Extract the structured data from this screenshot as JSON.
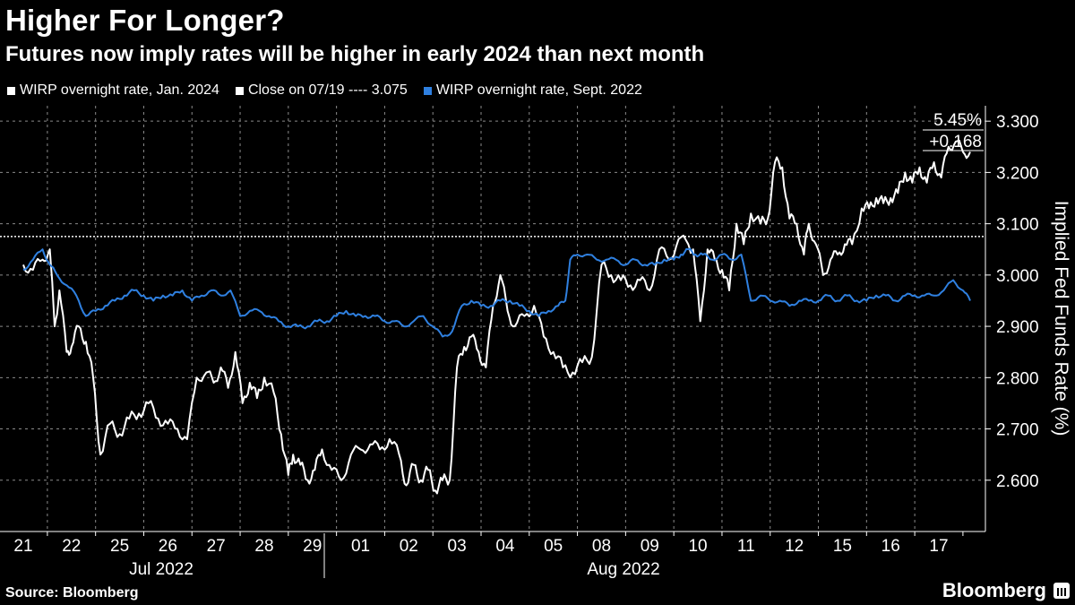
{
  "chart_data": {
    "type": "line",
    "title": "Higher For Longer?",
    "subtitle": "Futures now imply rates will be higher in early 2024 than next month",
    "ylabel": "Implied Fed Funds Rate (%)",
    "ylim": [
      2.5,
      3.33
    ],
    "yticks": [
      "3.300",
      "3.200",
      "3.100",
      "3.000",
      "2.900",
      "2.800",
      "2.700",
      "2.600"
    ],
    "ytick_values": [
      3.3,
      3.2,
      3.1,
      3.0,
      2.9,
      2.8,
      2.7,
      2.6
    ],
    "grid": true,
    "day_labels": [
      "21",
      "22",
      "25",
      "26",
      "27",
      "28",
      "29",
      "01",
      "02",
      "03",
      "04",
      "05",
      "08",
      "09",
      "10",
      "11",
      "12",
      "15",
      "16",
      "17"
    ],
    "month_labels": [
      "Jul 2022",
      "Aug 2022"
    ],
    "legend": [
      {
        "label": "WIRP overnight rate, Jan. 2024",
        "color": "#ffffff"
      },
      {
        "label": "Close on 07/19 ---- 3.075",
        "color": "#ffffff"
      },
      {
        "label": "WIRP overnight rate, Sept. 2022",
        "color": "#2f80e0"
      }
    ],
    "reference_line": {
      "value": 3.075
    },
    "annotations": {
      "top_label": "5.45%",
      "change_label": "+0.168"
    },
    "series": [
      {
        "name": "WIRP overnight rate, Jan. 2024",
        "color": "#ffffff",
        "x": [
          0,
          0.2,
          0.4,
          0.55,
          0.65,
          0.75,
          0.9,
          1.0,
          1.15,
          1.3,
          1.45,
          1.6,
          1.8,
          2.0,
          2.2,
          2.4,
          2.6,
          2.8,
          3.0,
          3.2,
          3.4,
          3.6,
          3.8,
          3.95,
          4.1,
          4.25,
          4.4,
          4.55,
          4.7,
          4.85,
          5.0,
          5.2,
          5.35,
          5.5,
          5.6,
          5.75,
          5.9,
          6.05,
          6.2,
          6.4,
          6.6,
          6.8,
          7.0,
          7.2,
          7.4,
          7.6,
          7.8,
          7.95,
          8.1,
          8.25,
          8.4,
          8.55,
          8.7,
          8.85,
          9.0,
          9.15,
          9.3,
          9.45,
          9.6,
          9.75,
          9.9,
          10.05,
          10.2,
          10.4,
          10.6,
          10.8,
          11.0,
          11.2,
          11.4,
          11.6,
          11.8,
          12.0,
          12.2,
          12.4,
          12.6,
          12.8,
          13.0,
          13.2,
          13.4,
          13.6,
          13.8,
          13.9,
          14.05,
          14.2,
          14.35,
          14.5,
          14.65,
          14.8,
          14.95,
          15.1,
          15.3,
          15.45,
          15.6,
          15.75,
          15.9,
          16.05,
          16.2,
          16.3,
          16.45,
          16.6,
          16.75,
          16.9,
          17.05,
          17.2,
          17.4,
          17.55,
          17.7,
          17.85,
          18.0,
          18.15,
          18.3,
          18.45,
          18.6,
          18.75,
          18.9,
          19.05,
          19.2,
          19.35,
          19.5,
          19.65
        ],
        "values": [
          3.02,
          3.01,
          3.03,
          3.05,
          2.9,
          2.97,
          2.85,
          2.86,
          2.9,
          2.87,
          2.8,
          2.65,
          2.71,
          2.69,
          2.72,
          2.73,
          2.75,
          2.72,
          2.71,
          2.7,
          2.68,
          2.8,
          2.81,
          2.79,
          2.82,
          2.78,
          2.85,
          2.75,
          2.79,
          2.76,
          2.8,
          2.77,
          2.69,
          2.61,
          2.65,
          2.63,
          2.6,
          2.62,
          2.66,
          2.62,
          2.6,
          2.65,
          2.66,
          2.67,
          2.66,
          2.68,
          2.65,
          2.59,
          2.63,
          2.6,
          2.62,
          2.58,
          2.6,
          2.6,
          2.82,
          2.86,
          2.88,
          2.85,
          2.82,
          2.94,
          3.0,
          2.93,
          2.9,
          2.92,
          2.94,
          2.88,
          2.85,
          2.82,
          2.81,
          2.83,
          2.84,
          3.02,
          3.0,
          2.99,
          2.98,
          2.99,
          2.97,
          3.05,
          3.03,
          3.07,
          3.06,
          3.05,
          2.91,
          3.05,
          3.03,
          3.01,
          2.97,
          3.1,
          3.06,
          3.12,
          3.1,
          3.11,
          3.22,
          3.21,
          3.11,
          3.1,
          3.04,
          3.1,
          3.06,
          3.0,
          3.03,
          3.04,
          3.06,
          3.06,
          3.13,
          3.13,
          3.15,
          3.14,
          3.15,
          3.16,
          3.2,
          3.18,
          3.21,
          3.18,
          3.22,
          3.19,
          3.25,
          3.26,
          3.24,
          3.24
        ]
      },
      {
        "name": "WIRP overnight rate, Sept. 2022",
        "color": "#2f80e0",
        "x": [
          0,
          0.2,
          0.4,
          0.55,
          0.7,
          0.9,
          1.1,
          1.3,
          1.5,
          1.7,
          1.9,
          2.1,
          2.3,
          2.5,
          2.7,
          2.9,
          3.1,
          3.3,
          3.5,
          3.7,
          3.9,
          4.1,
          4.3,
          4.5,
          4.7,
          4.9,
          5.1,
          5.3,
          5.5,
          5.7,
          5.9,
          6.1,
          6.3,
          6.5,
          6.7,
          6.9,
          7.1,
          7.3,
          7.5,
          7.7,
          7.9,
          8.1,
          8.3,
          8.5,
          8.7,
          8.9,
          9.1,
          9.3,
          9.5,
          9.7,
          9.9,
          10.1,
          10.3,
          10.5,
          10.7,
          10.9,
          11.1,
          11.25,
          11.35,
          11.5,
          11.7,
          11.9,
          12.1,
          12.3,
          12.5,
          12.7,
          12.9,
          13.1,
          13.3,
          13.5,
          13.65,
          13.8,
          13.95,
          14.1,
          14.3,
          14.5,
          14.7,
          14.9,
          15.1,
          15.3,
          15.5,
          15.7,
          15.9,
          16.1,
          16.3,
          16.5,
          16.7,
          16.9,
          17.1,
          17.3,
          17.5,
          17.7,
          17.9,
          18.1,
          18.3,
          18.5,
          18.7,
          18.9,
          19.1,
          19.3,
          19.5,
          19.65
        ],
        "values": [
          3.01,
          3.03,
          3.05,
          3.02,
          3.0,
          2.98,
          2.96,
          2.92,
          2.93,
          2.94,
          2.95,
          2.96,
          2.97,
          2.96,
          2.95,
          2.96,
          2.96,
          2.97,
          2.95,
          2.96,
          2.97,
          2.96,
          2.97,
          2.92,
          2.93,
          2.93,
          2.92,
          2.91,
          2.9,
          2.9,
          2.9,
          2.91,
          2.91,
          2.92,
          2.93,
          2.92,
          2.92,
          2.92,
          2.91,
          2.91,
          2.9,
          2.91,
          2.92,
          2.9,
          2.88,
          2.89,
          2.94,
          2.95,
          2.94,
          2.94,
          2.95,
          2.95,
          2.94,
          2.93,
          2.92,
          2.93,
          2.94,
          2.95,
          3.03,
          3.04,
          3.04,
          3.03,
          3.03,
          3.03,
          3.02,
          3.03,
          3.02,
          3.02,
          3.03,
          3.03,
          3.04,
          3.05,
          3.04,
          3.04,
          3.03,
          3.04,
          3.03,
          3.04,
          2.95,
          2.96,
          2.95,
          2.95,
          2.94,
          2.95,
          2.95,
          2.95,
          2.96,
          2.95,
          2.96,
          2.95,
          2.95,
          2.96,
          2.96,
          2.95,
          2.96,
          2.96,
          2.96,
          2.96,
          2.97,
          2.99,
          2.97,
          2.95
        ]
      }
    ]
  },
  "source": "Source: Bloomberg",
  "brand": "Bloomberg"
}
